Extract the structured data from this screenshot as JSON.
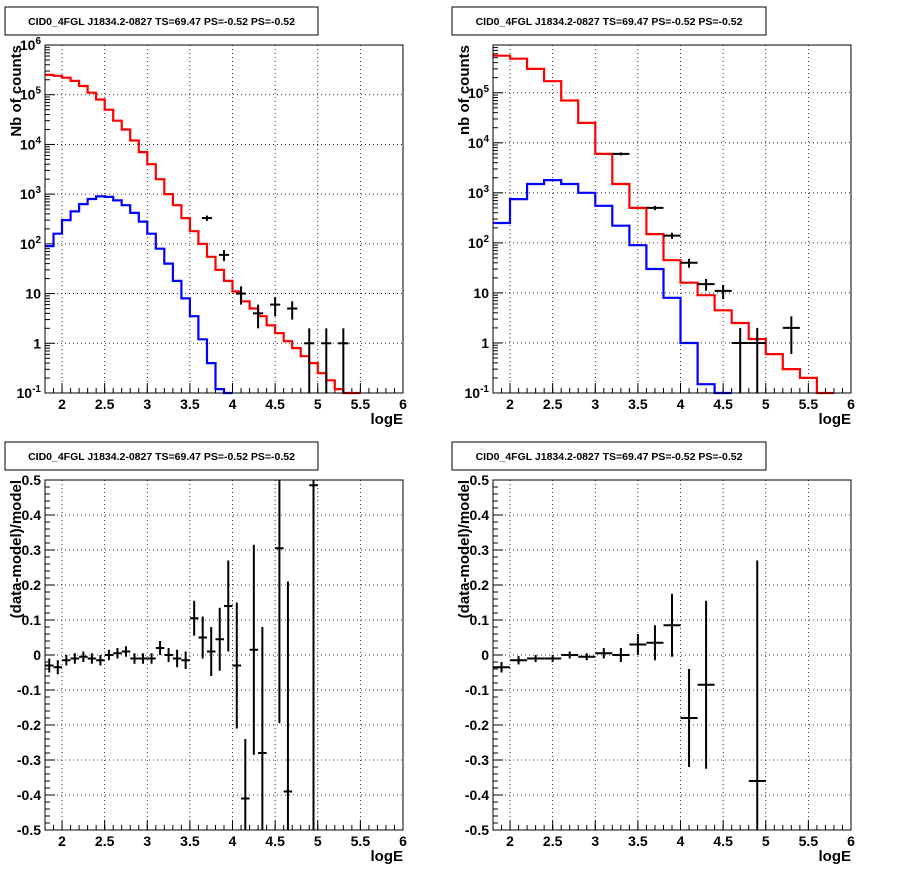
{
  "chart_data": [
    {
      "type": "line",
      "title": "CID0_4FGL J1834.2-0827 TS=69.47 PS=-0.52 PS=-0.52",
      "xlabel": "logE",
      "ylabel": "Nb of counts",
      "xlim": [
        1.8,
        6.0
      ],
      "ylim": [
        0.1,
        1000000
      ],
      "yscale": "log",
      "grid": true,
      "x_ticks": [
        "2",
        "2.5",
        "3",
        "3.5",
        "4",
        "4.5",
        "5",
        "5.5",
        "6"
      ],
      "y_ticks": [
        "10^-1",
        "1",
        "10",
        "10^2",
        "10^3",
        "10^4",
        "10^5",
        "10^6"
      ],
      "bin_edges": [
        1.8,
        1.9,
        2.0,
        2.1,
        2.2,
        2.3,
        2.4,
        2.5,
        2.6,
        2.7,
        2.8,
        2.9,
        3.0,
        3.1,
        3.2,
        3.3,
        3.4,
        3.5,
        3.6,
        3.7,
        3.8,
        3.9,
        4.0,
        4.1,
        4.2,
        4.3,
        4.4,
        4.5,
        4.6,
        4.7,
        4.8,
        4.9,
        5.0,
        5.1,
        5.2,
        5.3,
        5.4,
        5.5
      ],
      "series": [
        {
          "color": "#ff0000",
          "values": [
            250000,
            240000,
            220000,
            190000,
            150000,
            110000,
            80000,
            50000,
            30000,
            20000,
            12000,
            7000,
            4000,
            2000,
            1000,
            600,
            330,
            180,
            100,
            55,
            30,
            18,
            11,
            7,
            5,
            3.5,
            2.3,
            1.6,
            1.1,
            0.8,
            0.55,
            0.4,
            0.25,
            0.18,
            0.12,
            0.1,
            0.1
          ]
        },
        {
          "color": "#0000ff",
          "values": [
            90,
            160,
            300,
            450,
            630,
            800,
            900,
            880,
            750,
            600,
            420,
            280,
            160,
            80,
            40,
            18,
            8,
            3.5,
            1.2,
            0.4,
            0.12,
            0.05
          ]
        }
      ],
      "points": [
        {
          "x": 3.7,
          "y": 330,
          "lo": 290,
          "hi": 370
        },
        {
          "x": 3.9,
          "y": 60,
          "lo": 45,
          "hi": 75
        },
        {
          "x": 4.1,
          "y": 10,
          "lo": 6,
          "hi": 14
        },
        {
          "x": 4.3,
          "y": 4,
          "lo": 2,
          "hi": 6
        },
        {
          "x": 4.5,
          "y": 6,
          "lo": 3.5,
          "hi": 8.5
        },
        {
          "x": 4.7,
          "y": 5,
          "lo": 3,
          "hi": 7
        },
        {
          "x": 4.9,
          "y": 1,
          "lo": 0.1,
          "hi": 2
        },
        {
          "x": 5.1,
          "y": 1,
          "lo": 0.1,
          "hi": 2
        },
        {
          "x": 5.3,
          "y": 1,
          "lo": 0.1,
          "hi": 2
        }
      ]
    },
    {
      "type": "line",
      "title": "CID0_4FGL J1834.2-0827 TS=69.47 PS=-0.52 PS=-0.52",
      "xlabel": "logE",
      "ylabel": "nb of counts",
      "xlim": [
        1.8,
        6.0
      ],
      "ylim": [
        0.1,
        900000
      ],
      "yscale": "log",
      "grid": true,
      "x_ticks": [
        "2",
        "2.5",
        "3",
        "3.5",
        "4",
        "4.5",
        "5",
        "5.5",
        "6"
      ],
      "y_ticks": [
        "10^-1",
        "1",
        "10",
        "10^2",
        "10^3",
        "10^4",
        "10^5"
      ],
      "bin_edges": [
        1.8,
        2.0,
        2.2,
        2.4,
        2.6,
        2.8,
        3.0,
        3.2,
        3.4,
        3.6,
        3.8,
        4.0,
        4.2,
        4.4,
        4.6,
        4.8,
        5.0,
        5.2,
        5.4,
        5.6,
        5.8
      ],
      "series": [
        {
          "color": "#ff0000",
          "values": [
            550000,
            480000,
            300000,
            170000,
            70000,
            25000,
            6000,
            1500,
            500,
            150,
            45,
            16,
            9,
            4.5,
            2.5,
            1.2,
            0.6,
            0.3,
            0.2,
            0.1
          ]
        },
        {
          "color": "#0000ff",
          "values": [
            250,
            750,
            1500,
            1800,
            1500,
            1000,
            550,
            220,
            90,
            30,
            8,
            1,
            0.15,
            0.05
          ]
        }
      ],
      "points": [
        {
          "x": 3.3,
          "y": 6000,
          "lo": 5600,
          "hi": 6400
        },
        {
          "x": 3.7,
          "y": 500,
          "lo": 450,
          "hi": 550
        },
        {
          "x": 3.9,
          "y": 140,
          "lo": 120,
          "hi": 160
        },
        {
          "x": 4.1,
          "y": 40,
          "lo": 32,
          "hi": 48
        },
        {
          "x": 4.3,
          "y": 15,
          "lo": 11,
          "hi": 19
        },
        {
          "x": 4.5,
          "y": 11,
          "lo": 7.5,
          "hi": 14.5
        },
        {
          "x": 4.7,
          "y": 1,
          "lo": 0.1,
          "hi": 2
        },
        {
          "x": 4.9,
          "y": 1,
          "lo": 0.1,
          "hi": 2
        },
        {
          "x": 5.3,
          "y": 2,
          "lo": 0.6,
          "hi": 3.4
        }
      ]
    },
    {
      "type": "scatter",
      "title": "CID0_4FGL J1834.2-0827 TS=69.47 PS=-0.52 PS=-0.52",
      "xlabel": "logE",
      "ylabel": "(data-model)/model",
      "xlim": [
        1.8,
        6.0
      ],
      "ylim": [
        -0.5,
        0.5
      ],
      "grid": true,
      "x_ticks": [
        "2",
        "2.5",
        "3",
        "3.5",
        "4",
        "4.5",
        "5",
        "5.5",
        "6"
      ],
      "y_ticks": [
        "-0.5",
        "-0.4",
        "-0.3",
        "-0.2",
        "-0.1",
        "0",
        "0.1",
        "0.2",
        "0.3",
        "0.4",
        "0.5"
      ],
      "points": [
        {
          "x": 1.85,
          "y": -0.03,
          "err": 0.02
        },
        {
          "x": 1.95,
          "y": -0.035,
          "err": 0.02
        },
        {
          "x": 2.05,
          "y": -0.015,
          "err": 0.015
        },
        {
          "x": 2.15,
          "y": -0.01,
          "err": 0.015
        },
        {
          "x": 2.25,
          "y": -0.005,
          "err": 0.015
        },
        {
          "x": 2.35,
          "y": -0.01,
          "err": 0.015
        },
        {
          "x": 2.45,
          "y": -0.015,
          "err": 0.015
        },
        {
          "x": 2.55,
          "y": 0.0,
          "err": 0.015
        },
        {
          "x": 2.65,
          "y": 0.005,
          "err": 0.015
        },
        {
          "x": 2.75,
          "y": 0.01,
          "err": 0.015
        },
        {
          "x": 2.85,
          "y": -0.01,
          "err": 0.015
        },
        {
          "x": 2.95,
          "y": -0.01,
          "err": 0.015
        },
        {
          "x": 3.05,
          "y": -0.01,
          "err": 0.015
        },
        {
          "x": 3.15,
          "y": 0.02,
          "err": 0.02
        },
        {
          "x": 3.25,
          "y": 0.0,
          "err": 0.02
        },
        {
          "x": 3.35,
          "y": -0.01,
          "err": 0.025
        },
        {
          "x": 3.45,
          "y": -0.015,
          "err": 0.025
        },
        {
          "x": 3.55,
          "y": 0.105,
          "err": 0.05
        },
        {
          "x": 3.65,
          "y": 0.05,
          "err": 0.06
        },
        {
          "x": 3.75,
          "y": 0.01,
          "err": 0.07
        },
        {
          "x": 3.85,
          "y": 0.045,
          "err": 0.09
        },
        {
          "x": 3.95,
          "y": 0.14,
          "err": 0.13
        },
        {
          "x": 4.05,
          "y": -0.03,
          "err": 0.18
        },
        {
          "x": 4.15,
          "y": -0.41,
          "err": 0.17
        },
        {
          "x": 4.25,
          "y": 0.015,
          "err": 0.3
        },
        {
          "x": 4.35,
          "y": -0.28,
          "err": 0.36
        },
        {
          "x": 4.55,
          "y": 0.305,
          "err": 0.5
        },
        {
          "x": 4.65,
          "y": -0.39,
          "err": 0.6
        },
        {
          "x": 4.95,
          "y": 0.485,
          "err": 1.0
        }
      ]
    },
    {
      "type": "scatter",
      "title": "CID0_4FGL J1834.2-0827 TS=69.47 PS=-0.52 PS=-0.52",
      "xlabel": "logE",
      "ylabel": "(data-model)/model",
      "xlim": [
        1.8,
        6.0
      ],
      "ylim": [
        -0.5,
        0.5
      ],
      "grid": true,
      "x_ticks": [
        "2",
        "2.5",
        "3",
        "3.5",
        "4",
        "4.5",
        "5",
        "5.5",
        "6"
      ],
      "y_ticks": [
        "-0.5",
        "-0.4",
        "-0.3",
        "-0.2",
        "-0.1",
        "0",
        "0.1",
        "0.2",
        "0.3",
        "0.4",
        "0.5"
      ],
      "points": [
        {
          "x": 1.9,
          "y": -0.035,
          "err": 0.015
        },
        {
          "x": 2.1,
          "y": -0.015,
          "err": 0.012
        },
        {
          "x": 2.3,
          "y": -0.01,
          "err": 0.01
        },
        {
          "x": 2.5,
          "y": -0.01,
          "err": 0.01
        },
        {
          "x": 2.7,
          "y": 0.0,
          "err": 0.01
        },
        {
          "x": 2.9,
          "y": -0.005,
          "err": 0.01
        },
        {
          "x": 3.1,
          "y": 0.005,
          "err": 0.015
        },
        {
          "x": 3.3,
          "y": 0.0,
          "err": 0.02
        },
        {
          "x": 3.5,
          "y": 0.03,
          "err": 0.03
        },
        {
          "x": 3.7,
          "y": 0.035,
          "err": 0.05
        },
        {
          "x": 3.9,
          "y": 0.085,
          "err": 0.09
        },
        {
          "x": 4.1,
          "y": -0.18,
          "err": 0.14
        },
        {
          "x": 4.3,
          "y": -0.085,
          "err": 0.24
        },
        {
          "x": 4.9,
          "y": -0.36,
          "err": 0.63
        }
      ]
    }
  ]
}
